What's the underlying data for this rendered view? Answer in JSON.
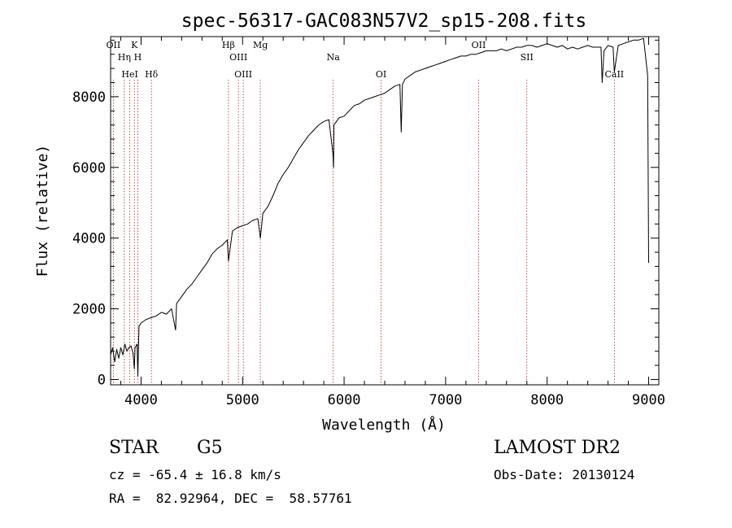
{
  "chart_data": {
    "type": "line",
    "title": "spec-56317-GAC083N57V2_sp15-208.fits",
    "xlabel": "Wavelength (Å)",
    "ylabel": "Flux (relative)",
    "xlim": [
      3700,
      9100
    ],
    "ylim": [
      -150,
      9700
    ],
    "xticks": [
      4000,
      5000,
      6000,
      7000,
      8000,
      9000
    ],
    "yticks": [
      0,
      2000,
      4000,
      6000,
      8000
    ],
    "grid": false,
    "series": [
      {
        "x": [
          3700,
          3720,
          3740,
          3760,
          3780,
          3800,
          3820,
          3840,
          3860,
          3880,
          3900,
          3920,
          3934,
          3940,
          3960,
          3968,
          3980,
          4000,
          4050,
          4100,
          4150,
          4200,
          4250,
          4300,
          4340,
          4350,
          4400,
          4450,
          4500,
          4550,
          4600,
          4650,
          4700,
          4750,
          4800,
          4850,
          4861,
          4900,
          4950,
          5000,
          5050,
          5100,
          5150,
          5175,
          5200,
          5250,
          5300,
          5350,
          5400,
          5450,
          5500,
          5550,
          5600,
          5650,
          5700,
          5750,
          5800,
          5850,
          5890,
          5896,
          5900,
          5950,
          6000,
          6050,
          6100,
          6150,
          6200,
          6250,
          6300,
          6350,
          6400,
          6450,
          6500,
          6550,
          6563,
          6575,
          6600,
          6650,
          6700,
          6750,
          6800,
          6850,
          6900,
          6950,
          7000,
          7050,
          7100,
          7150,
          7200,
          7250,
          7300,
          7350,
          7400,
          7450,
          7500,
          7550,
          7600,
          7650,
          7700,
          7750,
          7800,
          7850,
          7900,
          7950,
          8000,
          8050,
          8100,
          8150,
          8200,
          8250,
          8300,
          8350,
          8400,
          8450,
          8500,
          8530,
          8542,
          8560,
          8600,
          8650,
          8662,
          8700,
          8750,
          8800,
          8850,
          8900,
          8950,
          8990,
          9000
        ],
        "y": [
          700,
          900,
          500,
          850,
          600,
          900,
          700,
          1000,
          800,
          900,
          950,
          750,
          300,
          900,
          1000,
          100,
          1500,
          1600,
          1700,
          1750,
          1800,
          1900,
          1850,
          2000,
          1400,
          2150,
          2350,
          2550,
          2700,
          2900,
          3100,
          3300,
          3550,
          3700,
          3800,
          3950,
          3350,
          4200,
          4300,
          4350,
          4400,
          4500,
          4550,
          4000,
          4700,
          4900,
          5200,
          5550,
          5800,
          6000,
          6250,
          6500,
          6700,
          6900,
          7050,
          7200,
          7300,
          7350,
          6400,
          6000,
          7200,
          7400,
          7450,
          7600,
          7750,
          7800,
          7900,
          7950,
          8000,
          8050,
          8100,
          8200,
          8300,
          8350,
          7000,
          8350,
          8500,
          8600,
          8700,
          8750,
          8800,
          8850,
          8900,
          8950,
          9000,
          9050,
          9100,
          9150,
          9150,
          9200,
          9200,
          9250,
          9300,
          9300,
          9300,
          9350,
          9300,
          9350,
          9400,
          9400,
          9450,
          9450,
          9400,
          9450,
          9500,
          9450,
          9400,
          9450,
          9350,
          9400,
          9350,
          9400,
          9450,
          9400,
          9400,
          9400,
          8400,
          9300,
          9450,
          9400,
          8700,
          9450,
          9500,
          9550,
          9600,
          9600,
          9650,
          8600,
          3300
        ]
      }
    ],
    "lines": [
      {
        "label": "OII",
        "x": 3727
      },
      {
        "label": "Hη",
        "x": 3835
      },
      {
        "label": "HeI",
        "x": 3889
      },
      {
        "label": "K",
        "x": 3934
      },
      {
        "label": "H",
        "x": 3968
      },
      {
        "label": "Hδ",
        "x": 4102
      },
      {
        "label": "Hβ",
        "x": 4861
      },
      {
        "label": "OIII",
        "x": 4959
      },
      {
        "label": "OIII",
        "x": 5007
      },
      {
        "label": "Mg",
        "x": 5175
      },
      {
        "label": "Na",
        "x": 5893
      },
      {
        "label": "OI",
        "x": 6364
      },
      {
        "label": "OII",
        "x": 7325
      },
      {
        "label": "SII",
        "x": 7800
      },
      {
        "label": "CaII",
        "x": 8662
      }
    ]
  },
  "info": {
    "object_class": "STAR",
    "subclass": "G5",
    "survey": "LAMOST DR2",
    "redshift": "cz = -65.4 ± 16.8 km/s",
    "obs_date": "Obs-Date: 20130124",
    "coords": "RA =  82.92964, DEC =  58.57761"
  }
}
